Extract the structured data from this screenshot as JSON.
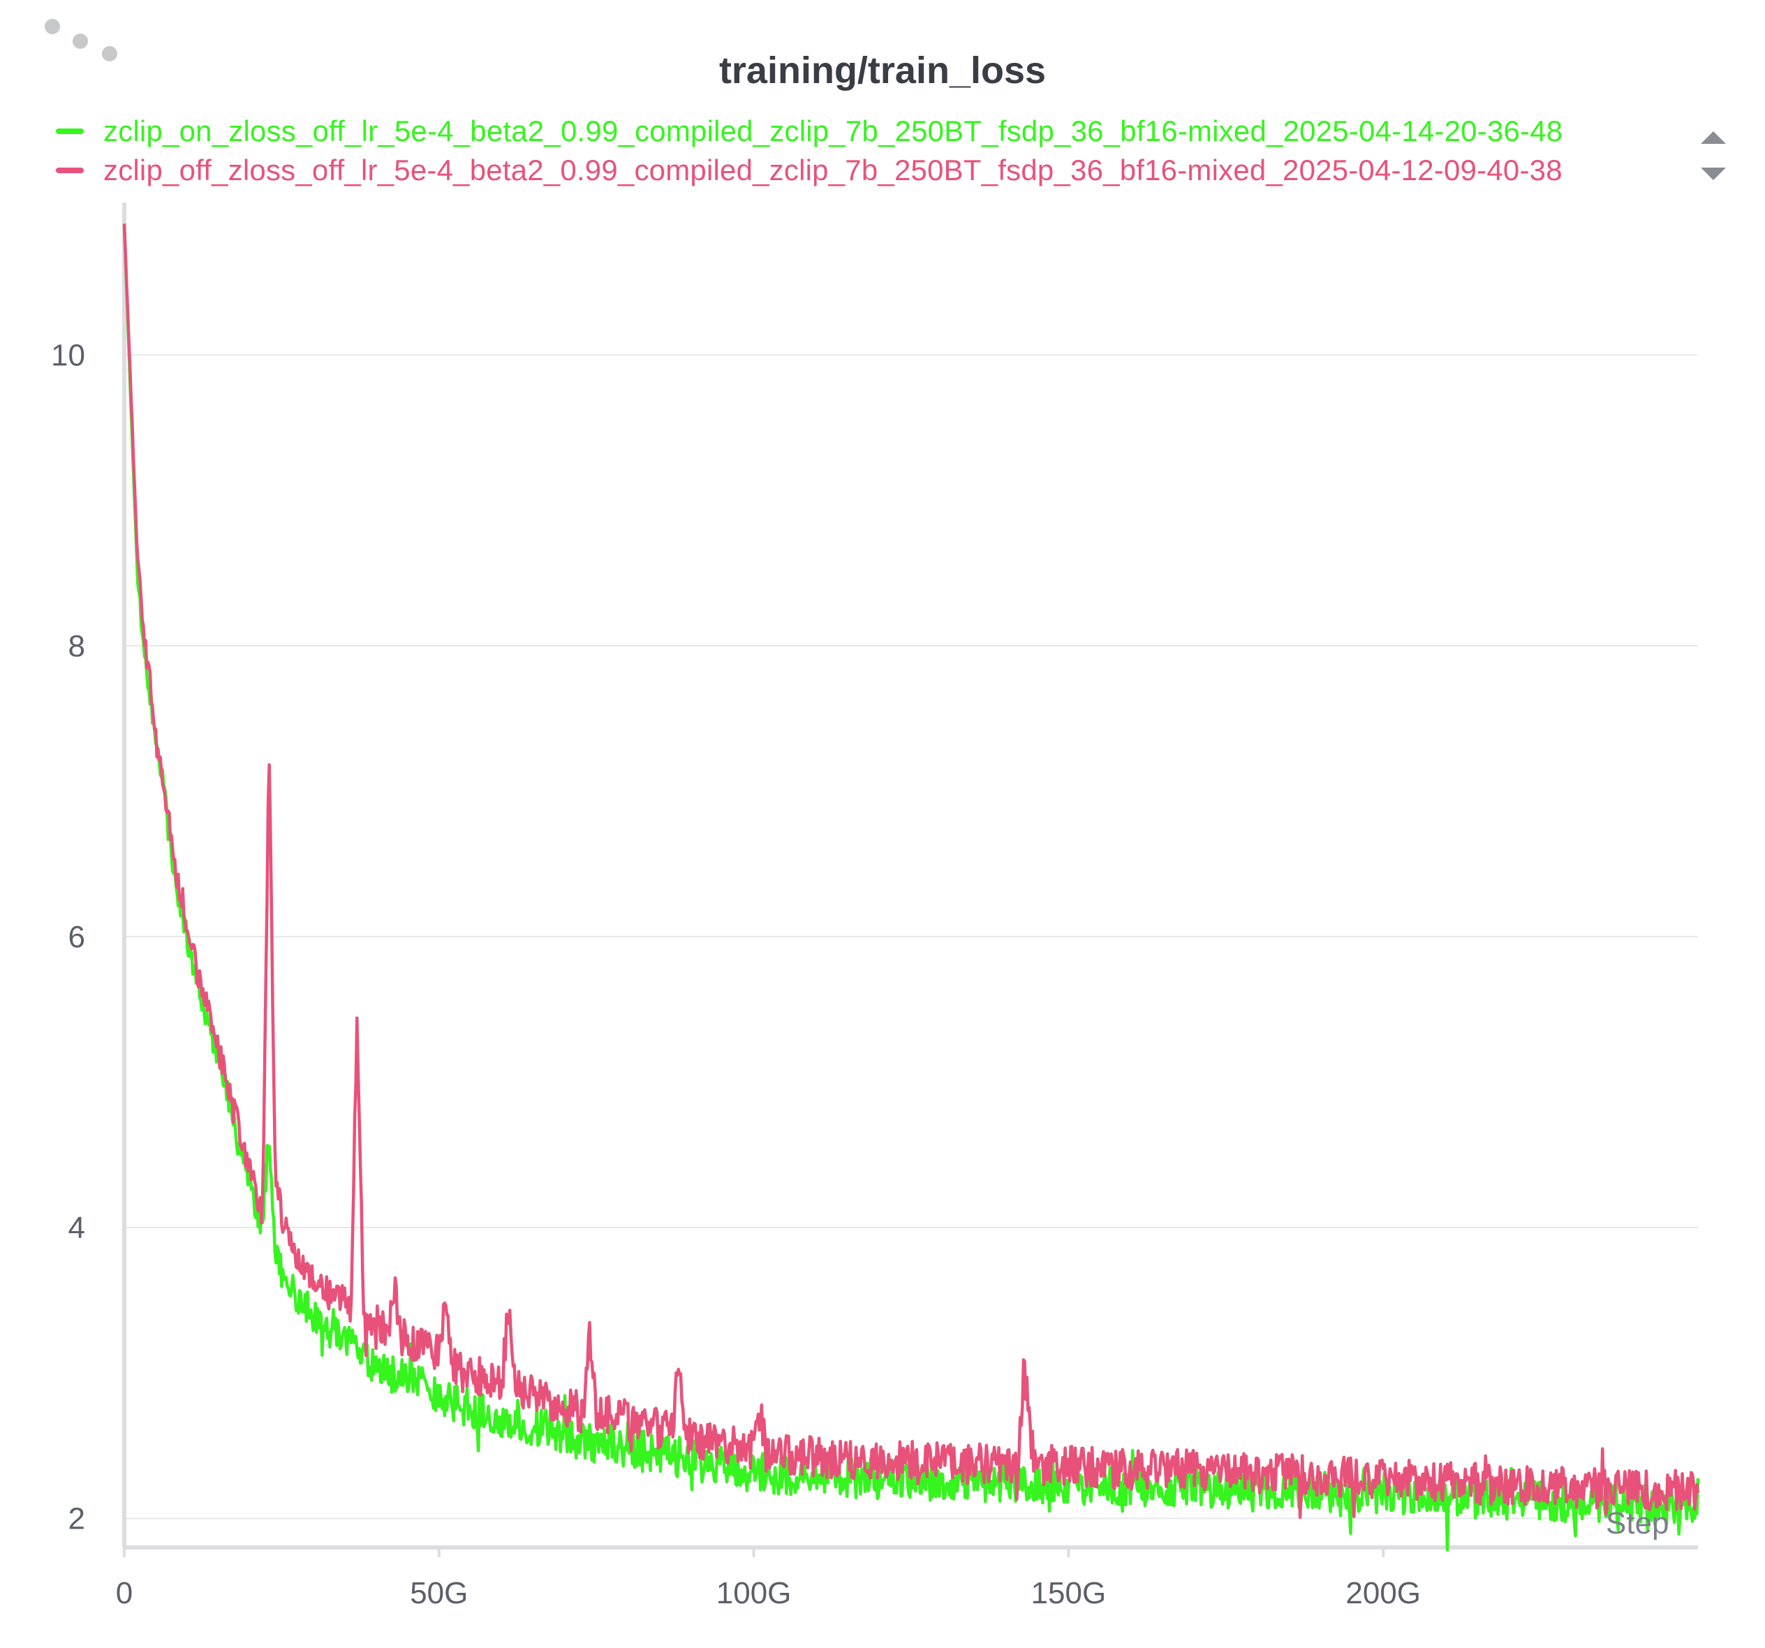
{
  "panel": {
    "menu_icon": "more-horizontal-icon"
  },
  "legend": {
    "scroll_up_icon": "caret-up-icon",
    "scroll_down_icon": "caret-down-icon"
  },
  "chart_data": {
    "type": "line",
    "title": "training/train_loss",
    "xlabel": "Step",
    "ylabel": "",
    "xlim": [
      0,
      250
    ],
    "x_unit": "G",
    "ylim": [
      1.8,
      11.0
    ],
    "x_ticks": [
      0,
      50,
      100,
      150,
      200
    ],
    "x_tick_labels": [
      "0",
      "50G",
      "100G",
      "150G",
      "200G"
    ],
    "y_ticks": [
      2,
      4,
      6,
      8,
      10
    ],
    "y_tick_labels": [
      "2",
      "4",
      "6",
      "8",
      "10"
    ],
    "grid": "horizontal",
    "legend_position": "top-left",
    "series": [
      {
        "name": "zclip_on_zloss_off_lr_5e-4_beta2_0.99_compiled_zclip_7b_250BT_fsdp_36_bf16-mixed_2025-04-14-20-36-48",
        "color": "#36f41e",
        "x": [
          0,
          1,
          2,
          3,
          4,
          5,
          6,
          8,
          10,
          12,
          14,
          16,
          18,
          20,
          22,
          23,
          24,
          26,
          28,
          30,
          32,
          34,
          36,
          38,
          40,
          42,
          44,
          46,
          48,
          50,
          52,
          55,
          58,
          60,
          62,
          65,
          68,
          70,
          72,
          75,
          78,
          80,
          85,
          88,
          90,
          92,
          95,
          100,
          105,
          110,
          115,
          120,
          125,
          130,
          135,
          140,
          145,
          150,
          155,
          160,
          165,
          170,
          175,
          180,
          185,
          190,
          195,
          200,
          205,
          210,
          215,
          220,
          225,
          230,
          235,
          240,
          245,
          250
        ],
        "y": [
          10.9,
          9.7,
          8.6,
          8.0,
          7.7,
          7.3,
          7.1,
          6.4,
          6.0,
          5.6,
          5.3,
          5.0,
          4.6,
          4.3,
          4.0,
          4.7,
          3.8,
          3.6,
          3.5,
          3.4,
          3.3,
          3.25,
          3.2,
          3.1,
          3.05,
          3.0,
          2.97,
          2.93,
          2.9,
          2.85,
          2.8,
          2.76,
          2.72,
          2.7,
          2.68,
          2.64,
          2.6,
          2.58,
          2.55,
          2.52,
          2.5,
          2.48,
          2.44,
          2.42,
          2.4,
          2.37,
          2.35,
          2.32,
          2.3,
          2.3,
          2.28,
          2.27,
          2.27,
          2.26,
          2.25,
          2.25,
          2.24,
          2.24,
          2.23,
          2.23,
          2.22,
          2.22,
          2.21,
          2.2,
          2.2,
          2.19,
          2.18,
          2.17,
          2.16,
          2.15,
          2.14,
          2.13,
          2.12,
          2.11,
          2.1,
          2.09,
          2.09,
          2.1
        ]
      },
      {
        "name": "zclip_off_zloss_off_lr_5e-4_beta2_0.99_compiled_zclip_7b_250BT_fsdp_36_bf16-mixed_2025-04-12-09-40-38",
        "color": "#e8527a",
        "x": [
          0,
          1,
          2,
          3,
          4,
          5,
          6,
          8,
          10,
          12,
          14,
          16,
          18,
          20,
          21,
          22,
          23,
          24,
          25,
          26,
          28,
          30,
          32,
          34,
          36,
          37,
          38,
          40,
          42,
          43,
          44,
          46,
          48,
          50,
          51,
          52,
          55,
          58,
          60,
          61,
          62,
          65,
          68,
          70,
          73,
          74,
          75,
          78,
          80,
          85,
          87,
          88,
          89,
          90,
          92,
          95,
          100,
          101,
          102,
          105,
          110,
          115,
          120,
          125,
          130,
          135,
          140,
          142,
          143,
          144,
          145,
          150,
          155,
          160,
          165,
          170,
          175,
          180,
          185,
          190,
          195,
          200,
          205,
          210,
          215,
          220,
          225,
          230,
          235,
          240,
          245,
          250
        ],
        "y": [
          10.9,
          9.8,
          8.7,
          8.1,
          7.8,
          7.35,
          7.15,
          6.5,
          6.1,
          5.7,
          5.4,
          5.05,
          4.7,
          4.4,
          4.2,
          4.1,
          7.3,
          4.3,
          4.1,
          3.9,
          3.75,
          3.65,
          3.55,
          3.5,
          3.45,
          5.45,
          3.4,
          3.35,
          3.3,
          3.6,
          3.25,
          3.2,
          3.17,
          3.12,
          3.55,
          3.08,
          3.0,
          2.95,
          2.92,
          3.45,
          2.9,
          2.85,
          2.8,
          2.78,
          2.72,
          3.25,
          2.72,
          2.7,
          2.68,
          2.62,
          2.58,
          3.1,
          2.6,
          2.56,
          2.53,
          2.5,
          2.47,
          2.75,
          2.45,
          2.44,
          2.42,
          2.41,
          2.4,
          2.39,
          2.38,
          2.38,
          2.37,
          2.37,
          3.05,
          2.5,
          2.37,
          2.36,
          2.35,
          2.34,
          2.34,
          2.33,
          2.32,
          2.31,
          2.3,
          2.29,
          2.28,
          2.27,
          2.26,
          2.25,
          2.24,
          2.23,
          2.22,
          2.21,
          2.2,
          2.19,
          2.19,
          2.2
        ]
      }
    ]
  }
}
